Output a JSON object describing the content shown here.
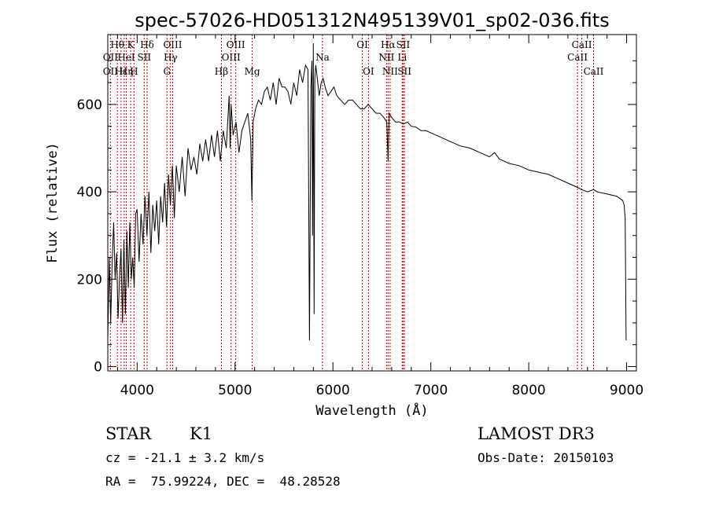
{
  "chart_data": {
    "type": "line",
    "title": "spec-57026-HD051312N495139V01_sp02-036.fits",
    "xlabel": "Wavelength (Å)",
    "ylabel": "Flux (relative)",
    "xlim": [
      3700,
      9100
    ],
    "ylim": [
      -10,
      760
    ],
    "x_ticks": [
      4000,
      5000,
      6000,
      7000,
      8000,
      9000
    ],
    "y_ticks": [
      0,
      200,
      400,
      600
    ],
    "grid": false,
    "series": [
      {
        "x": [
          3700,
          3715,
          3730,
          3745,
          3760,
          3775,
          3790,
          3805,
          3820,
          3835,
          3850,
          3865,
          3880,
          3895,
          3910,
          3925,
          3940,
          3955,
          3970,
          3985,
          4000,
          4020,
          4040,
          4060,
          4080,
          4100,
          4120,
          4140,
          4160,
          4180,
          4200,
          4220,
          4240,
          4260,
          4280,
          4300,
          4320,
          4340,
          4360,
          4380,
          4400,
          4430,
          4460,
          4490,
          4520,
          4550,
          4580,
          4610,
          4640,
          4670,
          4700,
          4730,
          4760,
          4790,
          4820,
          4850,
          4880,
          4910,
          4940,
          4950,
          4960,
          4980,
          5010,
          5040,
          5070,
          5100,
          5130,
          5160,
          5172,
          5185,
          5210,
          5240,
          5270,
          5300,
          5330,
          5360,
          5390,
          5420,
          5450,
          5480,
          5510,
          5540,
          5570,
          5600,
          5630,
          5660,
          5690,
          5720,
          5745,
          5760,
          5775,
          5785,
          5792,
          5800,
          5808,
          5815,
          5825,
          5840,
          5860,
          5880,
          5900,
          5920,
          5950,
          5980,
          6010,
          6040,
          6080,
          6120,
          6160,
          6200,
          6240,
          6280,
          6320,
          6360,
          6400,
          6440,
          6480,
          6520,
          6550,
          6563,
          6575,
          6600,
          6640,
          6680,
          6720,
          6760,
          6800,
          6850,
          6900,
          6950,
          7000,
          7100,
          7200,
          7300,
          7400,
          7500,
          7600,
          7650,
          7700,
          7800,
          7900,
          8000,
          8100,
          8200,
          8300,
          8400,
          8498,
          8542,
          8600,
          8662,
          8700,
          8800,
          8900,
          8960,
          8975,
          8985,
          8995
        ],
        "y": [
          60,
          250,
          100,
          240,
          330,
          200,
          260,
          110,
          200,
          270,
          100,
          290,
          120,
          310,
          180,
          330,
          200,
          250,
          180,
          350,
          360,
          240,
          350,
          280,
          390,
          300,
          400,
          260,
          370,
          310,
          380,
          280,
          390,
          330,
          420,
          320,
          440,
          370,
          460,
          340,
          460,
          400,
          480,
          390,
          500,
          450,
          480,
          440,
          510,
          470,
          520,
          470,
          530,
          480,
          540,
          470,
          540,
          500,
          620,
          500,
          600,
          530,
          560,
          490,
          540,
          560,
          580,
          520,
          380,
          560,
          590,
          610,
          600,
          630,
          640,
          610,
          650,
          600,
          660,
          640,
          640,
          630,
          600,
          650,
          620,
          680,
          650,
          690,
          680,
          60,
          640,
          700,
          300,
          740,
          120,
          660,
          690,
          660,
          620,
          650,
          660,
          640,
          620,
          630,
          640,
          620,
          610,
          600,
          610,
          610,
          600,
          590,
          590,
          600,
          590,
          580,
          580,
          570,
          560,
          470,
          580,
          570,
          560,
          560,
          555,
          560,
          550,
          548,
          540,
          540,
          535,
          525,
          515,
          505,
          500,
          490,
          480,
          490,
          475,
          465,
          460,
          450,
          445,
          440,
          430,
          420,
          410,
          405,
          400,
          405,
          400,
          395,
          390,
          380,
          370,
          340,
          60
        ]
      }
    ],
    "line_labels": [
      {
        "text": "Hθ",
        "x": 3798,
        "row": 1
      },
      {
        "text": "K",
        "x": 3934,
        "row": 1
      },
      {
        "text": "Hδ",
        "x": 4102,
        "row": 1
      },
      {
        "text": "OIII",
        "x": 4363,
        "row": 1
      },
      {
        "text": "OIII",
        "x": 5007,
        "row": 1
      },
      {
        "text": "OI",
        "x": 6300,
        "row": 1
      },
      {
        "text": "Hα",
        "x": 6563,
        "row": 1
      },
      {
        "text": "SII",
        "x": 6717,
        "row": 1
      },
      {
        "text": "CaII",
        "x": 8542,
        "row": 1
      },
      {
        "text": "OII",
        "x": 3727,
        "row": 2
      },
      {
        "text": "HeI",
        "x": 3889,
        "row": 2
      },
      {
        "text": "SII",
        "x": 4072,
        "row": 2
      },
      {
        "text": "Hγ",
        "x": 4341,
        "row": 2
      },
      {
        "text": "OIII",
        "x": 4959,
        "row": 2
      },
      {
        "text": "Na",
        "x": 5893,
        "row": 2
      },
      {
        "text": "NII",
        "x": 6548,
        "row": 2
      },
      {
        "text": "Li",
        "x": 6708,
        "row": 2
      },
      {
        "text": "CaII",
        "x": 8498,
        "row": 2
      },
      {
        "text": "OII",
        "x": 3727,
        "row": 3
      },
      {
        "text": "Hε",
        "x": 3835,
        "row": 3
      },
      {
        "text": "Hη",
        "x": 3889,
        "row": 3
      },
      {
        "text": "H",
        "x": 3968,
        "row": 3
      },
      {
        "text": "G",
        "x": 4305,
        "row": 3
      },
      {
        "text": "Hβ",
        "x": 4861,
        "row": 3
      },
      {
        "text": "Mg",
        "x": 5175,
        "row": 3
      },
      {
        "text": "OI",
        "x": 6363,
        "row": 3
      },
      {
        "text": "NII",
        "x": 6584,
        "row": 3
      },
      {
        "text": "SII",
        "x": 6731,
        "row": 3
      },
      {
        "text": "CaII",
        "x": 8662,
        "row": 3
      }
    ],
    "line_markers_x": [
      3727,
      3798,
      3835,
      3868,
      3889,
      3934,
      3968,
      4072,
      4102,
      4305,
      4341,
      4363,
      4861,
      4959,
      5007,
      5175,
      5893,
      6300,
      6363,
      6548,
      6563,
      6584,
      6708,
      6717,
      6731,
      8498,
      8542,
      8662
    ],
    "marker_color": "#cc0000"
  },
  "info": {
    "object_class": "STAR",
    "subclass": "K1",
    "survey": "LAMOST DR3",
    "redshift": "cz = -21.1 ± 3.2 km/s",
    "obs_date": "Obs-Date: 20150103",
    "coords": "RA =  75.99224, DEC =  48.28528"
  }
}
